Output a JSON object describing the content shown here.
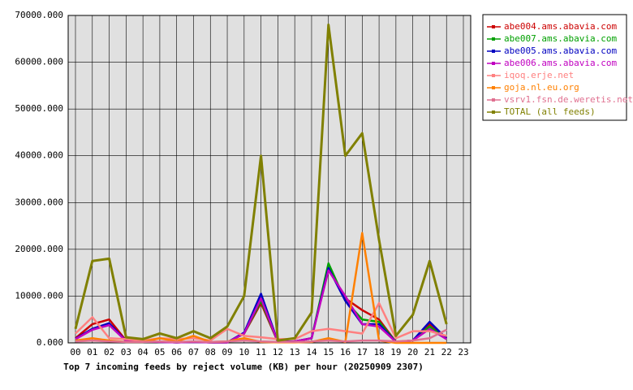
{
  "chart_data": {
    "type": "line",
    "title": "Top 7 incoming feeds by reject volume (KB) per hour (20250909 2307)",
    "categories": [
      "00",
      "01",
      "02",
      "03",
      "04",
      "05",
      "06",
      "07",
      "08",
      "09",
      "10",
      "11",
      "12",
      "13",
      "14",
      "15",
      "16",
      "17",
      "18",
      "19",
      "20",
      "21",
      "22",
      "23"
    ],
    "series": [
      {
        "name": "abe004.ams.abavia.com",
        "color": "#cc0000",
        "values": [
          1000,
          4000,
          5000,
          500,
          300,
          200,
          100,
          200,
          100,
          100,
          2000,
          8500,
          200,
          300,
          1000,
          16000,
          9500,
          7000,
          5000,
          200,
          500,
          4000,
          1000,
          null
        ]
      },
      {
        "name": "abe007.ams.abavia.com",
        "color": "#00a000",
        "values": [
          800,
          3000,
          4000,
          400,
          300,
          200,
          100,
          200,
          100,
          100,
          2000,
          9000,
          200,
          300,
          1000,
          17000,
          9000,
          5000,
          4500,
          200,
          500,
          3500,
          800,
          null
        ]
      },
      {
        "name": "abe005.ams.abavia.com",
        "color": "#0000c0",
        "values": [
          900,
          3000,
          4200,
          400,
          300,
          200,
          100,
          200,
          100,
          100,
          2200,
          10500,
          200,
          300,
          1000,
          16000,
          9000,
          4000,
          4000,
          200,
          500,
          4500,
          900,
          null
        ]
      },
      {
        "name": "abe006.ams.abavia.com",
        "color": "#c000c0",
        "values": [
          800,
          2800,
          3800,
          400,
          300,
          200,
          100,
          200,
          100,
          100,
          2000,
          9500,
          200,
          300,
          1000,
          15500,
          10000,
          4000,
          3500,
          200,
          500,
          3000,
          800,
          null
        ]
      },
      {
        "name": "iqoq.erje.net",
        "color": "#ff8080",
        "values": [
          2000,
          5500,
          1000,
          800,
          500,
          1000,
          800,
          1000,
          500,
          3000,
          1500,
          1200,
          800,
          800,
          2500,
          3000,
          2500,
          2000,
          8500,
          1000,
          2500,
          2500,
          1500,
          null
        ]
      },
      {
        "name": "goja.nl.eu.org",
        "color": "#ff8000",
        "values": [
          500,
          1000,
          500,
          200,
          200,
          1000,
          300,
          1500,
          200,
          300,
          1000,
          200,
          100,
          100,
          200,
          1000,
          200,
          23500,
          500,
          0,
          0,
          0,
          0,
          null
        ]
      },
      {
        "name": "vsrv1.fsn.de.weretis.net",
        "color": "#e07090",
        "values": [
          300,
          500,
          300,
          200,
          200,
          300,
          200,
          300,
          200,
          300,
          500,
          300,
          200,
          200,
          300,
          500,
          300,
          500,
          500,
          300,
          500,
          1000,
          2800,
          null
        ]
      },
      {
        "name": "TOTAL (all feeds)",
        "color": "#808000",
        "values": [
          3000,
          17500,
          18000,
          1200,
          800,
          2000,
          1000,
          2500,
          1000,
          3500,
          10000,
          40000,
          500,
          1000,
          6500,
          68000,
          40000,
          44800,
          22000,
          1500,
          6000,
          17500,
          4000,
          null
        ]
      }
    ],
    "ylim": [
      0,
      70000
    ],
    "yticks": [
      {
        "value": 0,
        "label": "0.000"
      },
      {
        "value": 10000,
        "label": "10000.000"
      },
      {
        "value": 20000,
        "label": "20000.000"
      },
      {
        "value": 30000,
        "label": "30000.000"
      },
      {
        "value": 40000,
        "label": "40000.000"
      },
      {
        "value": 50000,
        "label": "50000.000"
      },
      {
        "value": 60000,
        "label": "60000.000"
      },
      {
        "value": 70000,
        "label": "70000.000"
      }
    ],
    "grid": true
  }
}
